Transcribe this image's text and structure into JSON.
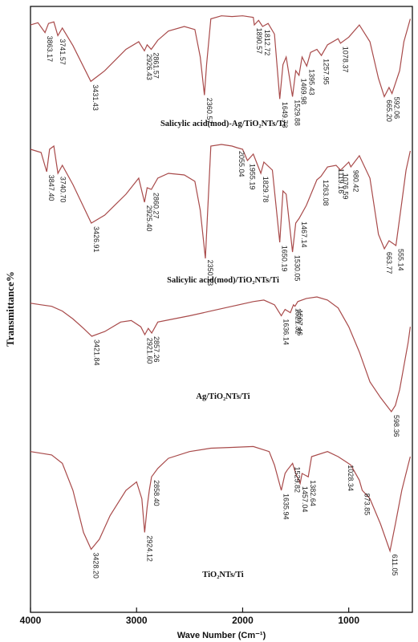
{
  "chart_data": {
    "type": "line",
    "ylabel": "Transmittance%",
    "xlabel": "Wave Number (Cm⁻¹)",
    "xlim": [
      4000,
      400
    ],
    "x_ticks": [
      "4000",
      "3000",
      "2000",
      "1000"
    ],
    "x_tick_values": [
      4000,
      3000,
      2000,
      1000
    ],
    "series": [
      {
        "name": "Salicylic acid(mod)-Ag/TiO₂NTs/Ti",
        "points": [
          [
            4000,
            18
          ],
          [
            3930,
            15
          ],
          [
            3863,
            28
          ],
          [
            3830,
            16
          ],
          [
            3780,
            14
          ],
          [
            3742,
            32
          ],
          [
            3700,
            22
          ],
          [
            3600,
            45
          ],
          [
            3431,
            92
          ],
          [
            3300,
            78
          ],
          [
            3100,
            50
          ],
          [
            2980,
            40
          ],
          [
            2926,
            52
          ],
          [
            2900,
            44
          ],
          [
            2862,
            50
          ],
          [
            2800,
            38
          ],
          [
            2700,
            26
          ],
          [
            2550,
            20
          ],
          [
            2450,
            24
          ],
          [
            2400,
            60
          ],
          [
            2360,
            110
          ],
          [
            2340,
            70
          ],
          [
            2300,
            10
          ],
          [
            2200,
            6
          ],
          [
            2100,
            7
          ],
          [
            2000,
            6
          ],
          [
            1900,
            8
          ],
          [
            1890,
            18
          ],
          [
            1850,
            12
          ],
          [
            1812,
            20
          ],
          [
            1760,
            16
          ],
          [
            1700,
            30
          ],
          [
            1650,
            115
          ],
          [
            1620,
            70
          ],
          [
            1590,
            60
          ],
          [
            1530,
            112
          ],
          [
            1500,
            78
          ],
          [
            1469,
            84
          ],
          [
            1440,
            60
          ],
          [
            1396,
            72
          ],
          [
            1360,
            54
          ],
          [
            1300,
            50
          ],
          [
            1258,
            58
          ],
          [
            1200,
            44
          ],
          [
            1100,
            36
          ],
          [
            1078,
            42
          ],
          [
            1000,
            34
          ],
          [
            900,
            18
          ],
          [
            800,
            40
          ],
          [
            720,
            88
          ],
          [
            665,
            112
          ],
          [
            620,
            100
          ],
          [
            592,
            108
          ],
          [
            520,
            78
          ],
          [
            480,
            40
          ],
          [
            420,
            10
          ]
        ],
        "labels": [
          "3863.17",
          "3741.57",
          "3431.43",
          "2926.43",
          "2861.57",
          "2360.57",
          "1890.57",
          "1812.72",
          "1649.73",
          "1529.88",
          "1469.98",
          "1395.43",
          "1257.95",
          "1078.37",
          "665.20",
          "592.06"
        ],
        "label_x": [
          3863.17,
          3741.57,
          3431.43,
          2926.43,
          2861.57,
          2360.57,
          1890.57,
          1812.72,
          1649.73,
          1529.88,
          1469.98,
          1395.43,
          1257.95,
          1078.37,
          665.2,
          592.06
        ]
      },
      {
        "name": "Salicylic acid(mod)/TiO₂NTs/Ti",
        "points": [
          [
            4000,
            14
          ],
          [
            3900,
            18
          ],
          [
            3847,
            42
          ],
          [
            3820,
            14
          ],
          [
            3780,
            10
          ],
          [
            3741,
            44
          ],
          [
            3700,
            34
          ],
          [
            3600,
            58
          ],
          [
            3427,
            106
          ],
          [
            3300,
            96
          ],
          [
            3100,
            70
          ],
          [
            2980,
            50
          ],
          [
            2925,
            80
          ],
          [
            2900,
            62
          ],
          [
            2860,
            64
          ],
          [
            2800,
            50
          ],
          [
            2700,
            44
          ],
          [
            2550,
            46
          ],
          [
            2450,
            54
          ],
          [
            2400,
            90
          ],
          [
            2351,
            150
          ],
          [
            2330,
            92
          ],
          [
            2300,
            10
          ],
          [
            2200,
            8
          ],
          [
            2100,
            10
          ],
          [
            2055,
            12
          ],
          [
            2000,
            14
          ],
          [
            1955,
            28
          ],
          [
            1900,
            20
          ],
          [
            1829,
            44
          ],
          [
            1800,
            30
          ],
          [
            1720,
            40
          ],
          [
            1650,
            130
          ],
          [
            1620,
            66
          ],
          [
            1590,
            70
          ],
          [
            1530,
            142
          ],
          [
            1500,
            106
          ],
          [
            1467,
            100
          ],
          [
            1400,
            84
          ],
          [
            1300,
            52
          ],
          [
            1263,
            48
          ],
          [
            1200,
            36
          ],
          [
            1119,
            34
          ],
          [
            1077,
            40
          ],
          [
            1000,
            30
          ],
          [
            980,
            36
          ],
          [
            900,
            22
          ],
          [
            800,
            50
          ],
          [
            720,
            120
          ],
          [
            664,
            138
          ],
          [
            620,
            128
          ],
          [
            555,
            134
          ],
          [
            500,
            80
          ],
          [
            460,
            40
          ],
          [
            420,
            16
          ]
        ],
        "labels": [
          "3847.40",
          "3740.70",
          "3426.91",
          "2925.40",
          "2860.27",
          "2350.13",
          "2055.04",
          "1955.19",
          "1829.78",
          "1650.19",
          "1530.05",
          "1467.14",
          "1263.08",
          "1119.16",
          "1076.59",
          "980.42",
          "663.77",
          "555.14"
        ],
        "label_x": [
          3847.4,
          3740.7,
          3426.91,
          2925.4,
          2860.27,
          2350.13,
          2055.04,
          1955.19,
          1829.78,
          1650.19,
          1530.05,
          1467.14,
          1263.08,
          1119.16,
          1076.59,
          980.42,
          663.77,
          555.14
        ]
      },
      {
        "name": "Ag/TiO₂NTs/Ti",
        "points": [
          [
            4000,
            10
          ],
          [
            3900,
            12
          ],
          [
            3800,
            14
          ],
          [
            3700,
            20
          ],
          [
            3600,
            30
          ],
          [
            3500,
            42
          ],
          [
            3422,
            52
          ],
          [
            3300,
            46
          ],
          [
            3150,
            34
          ],
          [
            3050,
            32
          ],
          [
            2960,
            40
          ],
          [
            2922,
            50
          ],
          [
            2890,
            42
          ],
          [
            2857,
            48
          ],
          [
            2800,
            34
          ],
          [
            2650,
            30
          ],
          [
            2500,
            26
          ],
          [
            2300,
            20
          ],
          [
            2100,
            14
          ],
          [
            1900,
            8
          ],
          [
            1800,
            6
          ],
          [
            1700,
            12
          ],
          [
            1636,
            26
          ],
          [
            1600,
            18
          ],
          [
            1550,
            22
          ],
          [
            1521,
            12
          ],
          [
            1507,
            14
          ],
          [
            1480,
            8
          ],
          [
            1400,
            4
          ],
          [
            1300,
            2
          ],
          [
            1200,
            6
          ],
          [
            1100,
            16
          ],
          [
            1000,
            40
          ],
          [
            900,
            72
          ],
          [
            800,
            110
          ],
          [
            700,
            130
          ],
          [
            598,
            148
          ],
          [
            560,
            140
          ],
          [
            520,
            120
          ],
          [
            480,
            90
          ],
          [
            440,
            60
          ],
          [
            420,
            40
          ]
        ],
        "labels": [
          "3421.84",
          "2921.60",
          "2857.26",
          "1636.14",
          "1521.32",
          "1507.46",
          "598.36"
        ],
        "label_x": [
          3421.84,
          2921.6,
          2857.26,
          1636.14,
          1521.32,
          1507.46,
          598.36
        ]
      },
      {
        "name": "TiO₂NTs/Ti",
        "points": [
          [
            4000,
            14
          ],
          [
            3800,
            18
          ],
          [
            3700,
            28
          ],
          [
            3600,
            60
          ],
          [
            3500,
            110
          ],
          [
            3428,
            130
          ],
          [
            3350,
            118
          ],
          [
            3250,
            90
          ],
          [
            3100,
            60
          ],
          [
            3000,
            50
          ],
          [
            2950,
            70
          ],
          [
            2924,
            110
          ],
          [
            2900,
            80
          ],
          [
            2880,
            60
          ],
          [
            2859,
            44
          ],
          [
            2800,
            34
          ],
          [
            2700,
            22
          ],
          [
            2500,
            14
          ],
          [
            2300,
            10
          ],
          [
            2100,
            9
          ],
          [
            1900,
            8
          ],
          [
            1750,
            14
          ],
          [
            1700,
            30
          ],
          [
            1636,
            60
          ],
          [
            1600,
            40
          ],
          [
            1580,
            36
          ],
          [
            1529,
            28
          ],
          [
            1500,
            40
          ],
          [
            1458,
            52
          ],
          [
            1440,
            40
          ],
          [
            1382,
            44
          ],
          [
            1350,
            20
          ],
          [
            1200,
            14
          ],
          [
            1100,
            20
          ],
          [
            1028,
            26
          ],
          [
            980,
            30
          ],
          [
            900,
            48
          ],
          [
            873,
            60
          ],
          [
            800,
            70
          ],
          [
            700,
            100
          ],
          [
            611,
            132
          ],
          [
            560,
            100
          ],
          [
            500,
            60
          ],
          [
            440,
            30
          ],
          [
            420,
            20
          ]
        ],
        "labels": [
          "3428.20",
          "2924.12",
          "2858.40",
          "1635.94",
          "1529.82",
          "1457.04",
          "1382.64",
          "1028.34",
          "873.85",
          "611.05"
        ],
        "label_x": [
          3428.2,
          2924.12,
          2858.4,
          1635.94,
          1529.82,
          1457.04,
          1382.64,
          1028.34,
          873.85,
          611.05
        ]
      }
    ]
  }
}
